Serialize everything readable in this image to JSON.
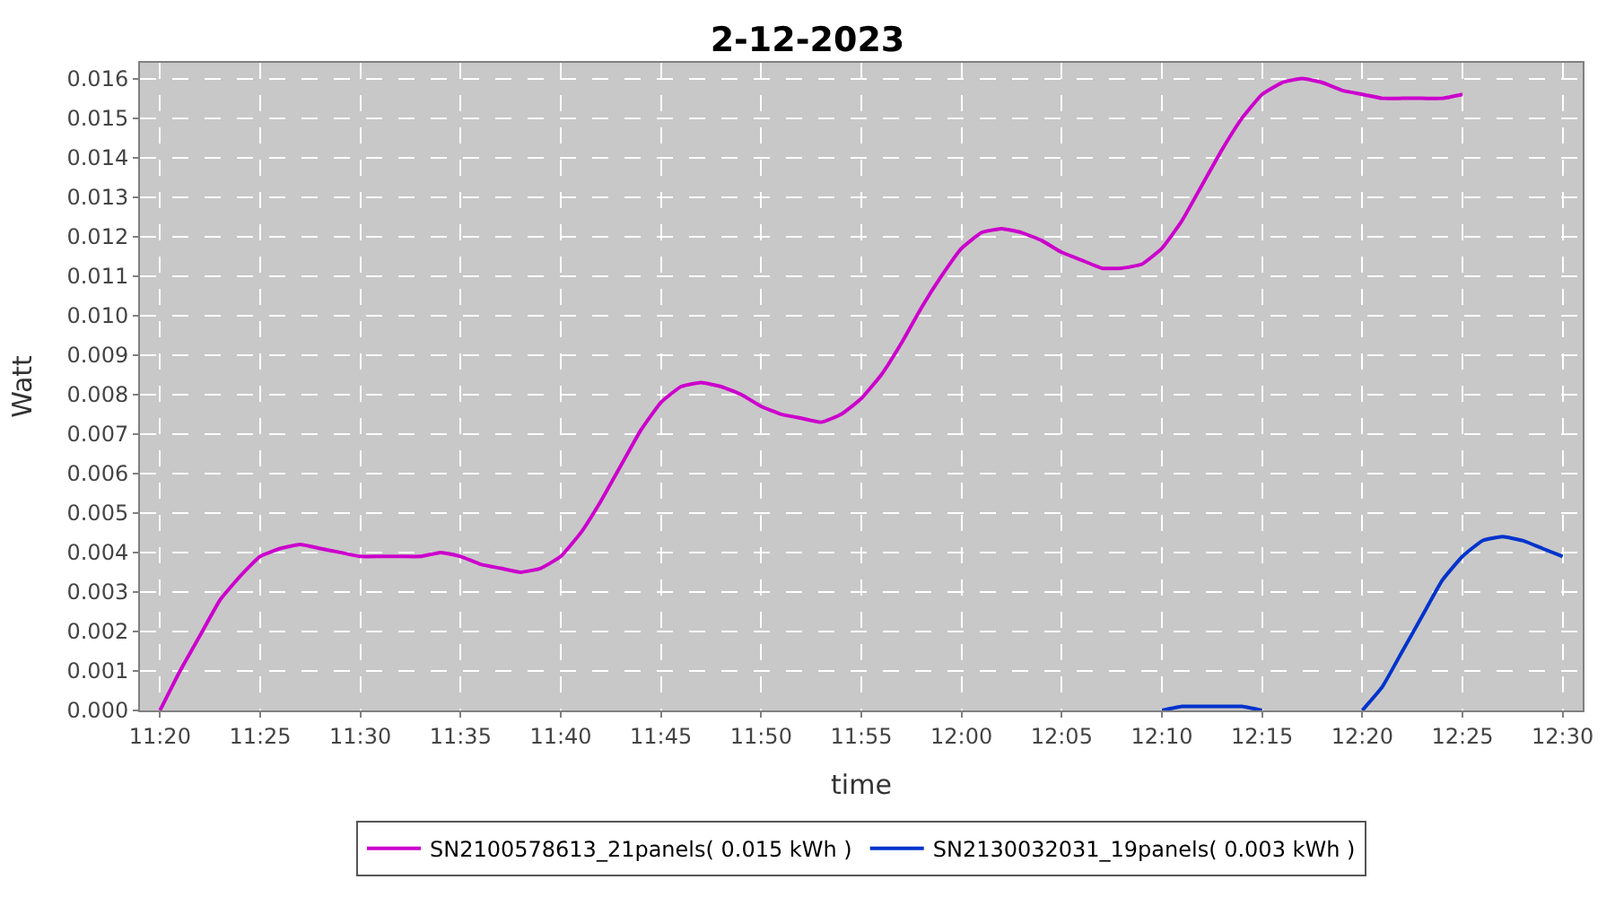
{
  "chart_data": {
    "type": "line",
    "title": "2-12-2023",
    "xlabel": "time",
    "ylabel": "Watt",
    "xlim": [
      "2023-12-02T11:19",
      "2023-12-02T12:31"
    ],
    "xticks": [
      {
        "value": "2023-12-02T11:20",
        "label": "11:20"
      },
      {
        "value": "2023-12-02T11:25",
        "label": "11:25"
      },
      {
        "value": "2023-12-02T11:30",
        "label": "11:30"
      },
      {
        "value": "2023-12-02T11:35",
        "label": "11:35"
      },
      {
        "value": "2023-12-02T11:40",
        "label": "11:40"
      },
      {
        "value": "2023-12-02T11:45",
        "label": "11:45"
      },
      {
        "value": "2023-12-02T11:50",
        "label": "11:50"
      },
      {
        "value": "2023-12-02T11:55",
        "label": "11:55"
      },
      {
        "value": "2023-12-02T12:00",
        "label": "12:00"
      },
      {
        "value": "2023-12-02T12:05",
        "label": "12:05"
      },
      {
        "value": "2023-12-02T12:10",
        "label": "12:10"
      },
      {
        "value": "2023-12-02T12:15",
        "label": "12:15"
      },
      {
        "value": "2023-12-02T12:20",
        "label": "12:20"
      },
      {
        "value": "2023-12-02T12:25",
        "label": "12:25"
      },
      {
        "value": "2023-12-02T12:30",
        "label": "12:30"
      }
    ],
    "ylim": [
      0,
      0.0164
    ],
    "yticks": [
      {
        "value": 0,
        "label": "0.000"
      },
      {
        "value": 0.001,
        "label": "0.001"
      },
      {
        "value": 0.002,
        "label": "0.002"
      },
      {
        "value": 0.003,
        "label": "0.003"
      },
      {
        "value": 0.004,
        "label": "0.004"
      },
      {
        "value": 0.005,
        "label": "0.005"
      },
      {
        "value": 0.006,
        "label": "0.006"
      },
      {
        "value": 0.007,
        "label": "0.007"
      },
      {
        "value": 0.008,
        "label": "0.008"
      },
      {
        "value": 0.009,
        "label": "0.009"
      },
      {
        "value": 0.01,
        "label": "0.010"
      },
      {
        "value": 0.011,
        "label": "0.011"
      },
      {
        "value": 0.012,
        "label": "0.012"
      },
      {
        "value": 0.013,
        "label": "0.013"
      },
      {
        "value": 0.014,
        "label": "0.014"
      },
      {
        "value": 0.015,
        "label": "0.015"
      },
      {
        "value": 0.016,
        "label": "0.016"
      }
    ],
    "grid": true,
    "legend": "bottom",
    "marker": "none",
    "line_style": "solid",
    "series": [
      {
        "name": "SN2100578613_21panels( 0.015 kWh )",
        "color": "#cc00cc",
        "x": [
          "2023-12-02T11:20",
          "2023-12-02T11:21",
          "2023-12-02T11:22",
          "2023-12-02T11:23",
          "2023-12-02T11:24",
          "2023-12-02T11:25",
          "2023-12-02T11:26",
          "2023-12-02T11:27",
          "2023-12-02T11:28",
          "2023-12-02T11:29",
          "2023-12-02T11:30",
          "2023-12-02T11:31",
          "2023-12-02T11:32",
          "2023-12-02T11:33",
          "2023-12-02T11:34",
          "2023-12-02T11:35",
          "2023-12-02T11:36",
          "2023-12-02T11:37",
          "2023-12-02T11:38",
          "2023-12-02T11:39",
          "2023-12-02T11:40",
          "2023-12-02T11:41",
          "2023-12-02T11:42",
          "2023-12-02T11:43",
          "2023-12-02T11:44",
          "2023-12-02T11:45",
          "2023-12-02T11:46",
          "2023-12-02T11:47",
          "2023-12-02T11:48",
          "2023-12-02T11:49",
          "2023-12-02T11:50",
          "2023-12-02T11:51",
          "2023-12-02T11:52",
          "2023-12-02T11:53",
          "2023-12-02T11:54",
          "2023-12-02T11:55",
          "2023-12-02T11:56",
          "2023-12-02T11:57",
          "2023-12-02T11:58",
          "2023-12-02T11:59",
          "2023-12-02T12:00",
          "2023-12-02T12:01",
          "2023-12-02T12:02",
          "2023-12-02T12:03",
          "2023-12-02T12:04",
          "2023-12-02T12:05",
          "2023-12-02T12:06",
          "2023-12-02T12:07",
          "2023-12-02T12:08",
          "2023-12-02T12:09",
          "2023-12-02T12:10",
          "2023-12-02T12:11",
          "2023-12-02T12:12",
          "2023-12-02T12:13",
          "2023-12-02T12:14",
          "2023-12-02T12:15",
          "2023-12-02T12:16",
          "2023-12-02T12:17",
          "2023-12-02T12:18",
          "2023-12-02T12:19",
          "2023-12-02T12:20",
          "2023-12-02T12:21",
          "2023-12-02T12:22",
          "2023-12-02T12:23",
          "2023-12-02T12:24",
          "2023-12-02T12:25"
        ],
        "values": [
          0.0,
          0.001,
          0.0019,
          0.0028,
          0.0034,
          0.0039,
          0.0041,
          0.0042,
          0.0041,
          0.004,
          0.0039,
          0.0039,
          0.0039,
          0.0039,
          0.004,
          0.0039,
          0.0037,
          0.0036,
          0.0035,
          0.0036,
          0.0039,
          0.0045,
          0.0053,
          0.0062,
          0.0071,
          0.0078,
          0.0082,
          0.0083,
          0.0082,
          0.008,
          0.0077,
          0.0075,
          0.0074,
          0.0073,
          0.0075,
          0.0079,
          0.0085,
          0.0093,
          0.0102,
          0.011,
          0.0117,
          0.0121,
          0.0122,
          0.0121,
          0.0119,
          0.0116,
          0.0114,
          0.0112,
          0.0112,
          0.0113,
          0.0117,
          0.0124,
          0.0133,
          0.0142,
          0.015,
          0.0156,
          0.0159,
          0.016,
          0.0159,
          0.0157,
          0.0156,
          0.0155,
          0.0155,
          0.0155,
          0.0155,
          0.0156
        ]
      },
      {
        "name": "SN2130032031_19panels( 0.003 kWh )",
        "color": "#0033cc",
        "x": [
          "2023-12-02T12:10",
          "2023-12-02T12:11",
          "2023-12-02T12:12",
          "2023-12-02T12:13",
          "2023-12-02T12:14",
          "2023-12-02T12:15",
          "2023-12-02T12:16",
          "2023-12-02T12:17",
          "2023-12-02T12:18",
          "2023-12-02T12:19",
          "2023-12-02T12:20",
          "2023-12-02T12:21",
          "2023-12-02T12:22",
          "2023-12-02T12:23",
          "2023-12-02T12:24",
          "2023-12-02T12:25",
          "2023-12-02T12:26",
          "2023-12-02T12:27",
          "2023-12-02T12:28",
          "2023-12-02T12:29",
          "2023-12-02T12:30"
        ],
        "values": [
          0.0,
          0.0001,
          0.0001,
          0.0001,
          0.0001,
          0.0,
          null,
          null,
          null,
          null,
          0.0,
          0.0006,
          0.0015,
          0.0024,
          0.0033,
          0.0039,
          0.0043,
          0.0044,
          0.0043,
          0.0041,
          0.0039
        ]
      }
    ]
  }
}
